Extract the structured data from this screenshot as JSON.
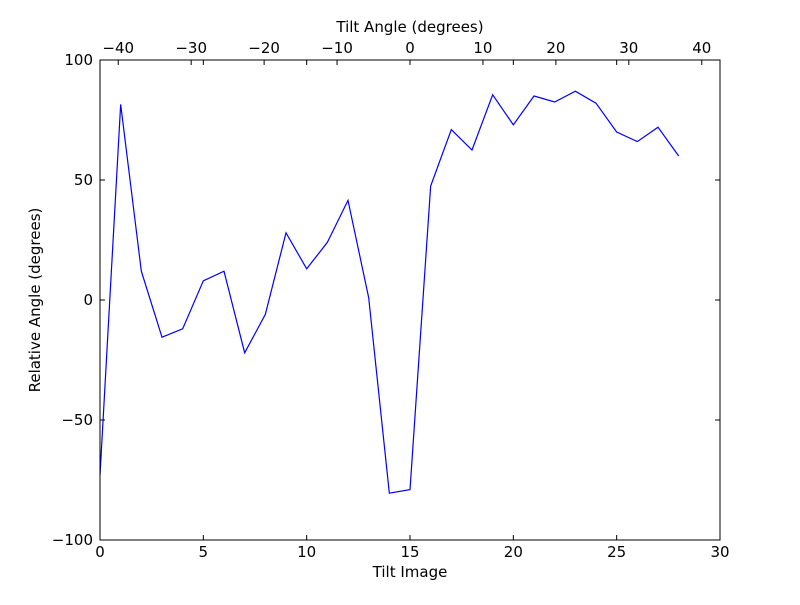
{
  "chart_data": {
    "type": "line",
    "xlabel": "Tilt Image",
    "ylabel": "Relative Angle (degrees)",
    "top_xlabel": "Tilt Angle (degrees)",
    "xlim": [
      0,
      30
    ],
    "ylim": [
      -100,
      100
    ],
    "top_xlim": [
      -42.5,
      42.5
    ],
    "x_ticks": [
      0,
      5,
      10,
      15,
      20,
      25,
      30
    ],
    "x_tick_labels": [
      "0",
      "5",
      "10",
      "15",
      "20",
      "25",
      "30"
    ],
    "y_ticks": [
      -100,
      -50,
      0,
      50,
      100
    ],
    "y_tick_labels": [
      "−100",
      "−50",
      "0",
      "50",
      "100"
    ],
    "top_ticks": [
      -40,
      -30,
      -20,
      -10,
      0,
      10,
      20,
      30,
      40
    ],
    "top_tick_labels": [
      "−40",
      "−30",
      "−20",
      "−10",
      "0",
      "10",
      "20",
      "30",
      "40"
    ],
    "grid": false,
    "series": [
      {
        "color": "#0000ff",
        "x": [
          0,
          1,
          2,
          3,
          4,
          5,
          6,
          7,
          8,
          9,
          10,
          11,
          12,
          13,
          14,
          15,
          16,
          17,
          18,
          19,
          20,
          21,
          22,
          23,
          24,
          25,
          26,
          27,
          28
        ],
        "y": [
          -73,
          81.5,
          12,
          -15.5,
          -12,
          8,
          12,
          -22,
          -6,
          28,
          13,
          24,
          41.5,
          1,
          -80.5,
          -79,
          47.5,
          71,
          62.5,
          85.5,
          73,
          85,
          82.5,
          87,
          82,
          70,
          66,
          72,
          60
        ]
      }
    ]
  }
}
